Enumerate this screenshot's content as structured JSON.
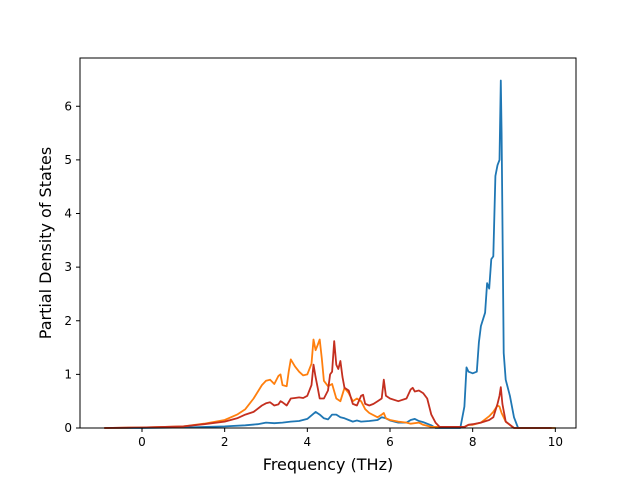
{
  "chart_data": {
    "type": "line",
    "title": "",
    "xlabel": "Frequency (THz)",
    "ylabel": "Partial Density of States",
    "xlim": [
      -1.5,
      10.5
    ],
    "ylim": [
      0,
      6.9
    ],
    "xticks": [
      0,
      2,
      4,
      6,
      8,
      10
    ],
    "yticks": [
      0,
      1,
      2,
      3,
      4,
      5,
      6
    ],
    "xtick_labels": [
      "0",
      "2",
      "4",
      "6",
      "8",
      "10"
    ],
    "ytick_labels": [
      "0",
      "1",
      "2",
      "3",
      "4",
      "5",
      "6"
    ],
    "grid": false,
    "legend": "none",
    "series": [
      {
        "color": "#1f77b4",
        "points": [
          [
            -0.9,
            0
          ],
          [
            0,
            0
          ],
          [
            1,
            0.01
          ],
          [
            2,
            0.03
          ],
          [
            2.5,
            0.05
          ],
          [
            2.8,
            0.07
          ],
          [
            3.0,
            0.1
          ],
          [
            3.2,
            0.09
          ],
          [
            3.4,
            0.1
          ],
          [
            3.6,
            0.12
          ],
          [
            3.8,
            0.13
          ],
          [
            4.0,
            0.17
          ],
          [
            4.2,
            0.3
          ],
          [
            4.3,
            0.25
          ],
          [
            4.4,
            0.18
          ],
          [
            4.5,
            0.16
          ],
          [
            4.6,
            0.25
          ],
          [
            4.7,
            0.25
          ],
          [
            4.8,
            0.2
          ],
          [
            4.9,
            0.18
          ],
          [
            5.0,
            0.15
          ],
          [
            5.1,
            0.12
          ],
          [
            5.2,
            0.14
          ],
          [
            5.3,
            0.12
          ],
          [
            5.5,
            0.13
          ],
          [
            5.7,
            0.15
          ],
          [
            5.8,
            0.2
          ],
          [
            5.9,
            0.18
          ],
          [
            6.0,
            0.14
          ],
          [
            6.2,
            0.1
          ],
          [
            6.4,
            0.1
          ],
          [
            6.5,
            0.15
          ],
          [
            6.6,
            0.17
          ],
          [
            6.7,
            0.13
          ],
          [
            6.8,
            0.11
          ],
          [
            7.0,
            0.05
          ],
          [
            7.1,
            0
          ],
          [
            7.7,
            0
          ],
          [
            7.8,
            0.4
          ],
          [
            7.85,
            1.13
          ],
          [
            7.9,
            1.05
          ],
          [
            8.0,
            1.02
          ],
          [
            8.1,
            1.05
          ],
          [
            8.15,
            1.6
          ],
          [
            8.2,
            1.9
          ],
          [
            8.3,
            2.15
          ],
          [
            8.35,
            2.7
          ],
          [
            8.4,
            2.6
          ],
          [
            8.45,
            3.15
          ],
          [
            8.5,
            3.2
          ],
          [
            8.55,
            4.7
          ],
          [
            8.6,
            4.9
          ],
          [
            8.65,
            5.0
          ],
          [
            8.68,
            6.48
          ],
          [
            8.7,
            5.5
          ],
          [
            8.75,
            1.4
          ],
          [
            8.8,
            0.9
          ],
          [
            8.9,
            0.6
          ],
          [
            9.0,
            0.2
          ],
          [
            9.1,
            0
          ],
          [
            10,
            0
          ]
        ]
      },
      {
        "color": "#ff7f0e",
        "points": [
          [
            -0.9,
            0
          ],
          [
            0,
            0.01
          ],
          [
            1,
            0.03
          ],
          [
            1.5,
            0.08
          ],
          [
            2,
            0.15
          ],
          [
            2.3,
            0.25
          ],
          [
            2.5,
            0.35
          ],
          [
            2.7,
            0.55
          ],
          [
            2.9,
            0.8
          ],
          [
            3.0,
            0.88
          ],
          [
            3.1,
            0.9
          ],
          [
            3.2,
            0.82
          ],
          [
            3.3,
            0.97
          ],
          [
            3.35,
            1.0
          ],
          [
            3.4,
            0.8
          ],
          [
            3.5,
            0.78
          ],
          [
            3.55,
            1.05
          ],
          [
            3.6,
            1.28
          ],
          [
            3.7,
            1.15
          ],
          [
            3.8,
            1.05
          ],
          [
            3.9,
            0.98
          ],
          [
            4.0,
            1.0
          ],
          [
            4.1,
            1.2
          ],
          [
            4.15,
            1.65
          ],
          [
            4.2,
            1.45
          ],
          [
            4.25,
            1.55
          ],
          [
            4.3,
            1.65
          ],
          [
            4.35,
            1.3
          ],
          [
            4.4,
            0.88
          ],
          [
            4.5,
            0.78
          ],
          [
            4.6,
            0.82
          ],
          [
            4.7,
            0.55
          ],
          [
            4.8,
            0.5
          ],
          [
            4.9,
            0.75
          ],
          [
            5.0,
            0.65
          ],
          [
            5.1,
            0.5
          ],
          [
            5.2,
            0.55
          ],
          [
            5.3,
            0.5
          ],
          [
            5.4,
            0.35
          ],
          [
            5.5,
            0.28
          ],
          [
            5.7,
            0.2
          ],
          [
            5.8,
            0.25
          ],
          [
            5.85,
            0.28
          ],
          [
            5.9,
            0.18
          ],
          [
            6.0,
            0.15
          ],
          [
            6.2,
            0.12
          ],
          [
            6.4,
            0.1
          ],
          [
            6.5,
            0.08
          ],
          [
            6.7,
            0.1
          ],
          [
            6.8,
            0.06
          ],
          [
            7.0,
            0.02
          ],
          [
            7.8,
            0.02
          ],
          [
            7.9,
            0.06
          ],
          [
            8.0,
            0.06
          ],
          [
            8.2,
            0.1
          ],
          [
            8.4,
            0.22
          ],
          [
            8.5,
            0.3
          ],
          [
            8.6,
            0.42
          ],
          [
            8.65,
            0.4
          ],
          [
            8.7,
            0.28
          ],
          [
            8.8,
            0.12
          ],
          [
            9.0,
            0
          ],
          [
            10,
            0
          ]
        ]
      },
      {
        "color": "#c42f1f",
        "points": [
          [
            -0.9,
            0
          ],
          [
            0,
            0.01
          ],
          [
            1,
            0.03
          ],
          [
            1.5,
            0.07
          ],
          [
            2,
            0.12
          ],
          [
            2.3,
            0.18
          ],
          [
            2.5,
            0.25
          ],
          [
            2.7,
            0.3
          ],
          [
            2.9,
            0.42
          ],
          [
            3.0,
            0.46
          ],
          [
            3.1,
            0.48
          ],
          [
            3.2,
            0.42
          ],
          [
            3.3,
            0.44
          ],
          [
            3.35,
            0.5
          ],
          [
            3.4,
            0.48
          ],
          [
            3.5,
            0.42
          ],
          [
            3.6,
            0.55
          ],
          [
            3.7,
            0.56
          ],
          [
            3.8,
            0.57
          ],
          [
            3.9,
            0.56
          ],
          [
            4.0,
            0.6
          ],
          [
            4.1,
            0.8
          ],
          [
            4.15,
            1.18
          ],
          [
            4.2,
            0.95
          ],
          [
            4.25,
            0.75
          ],
          [
            4.3,
            0.55
          ],
          [
            4.4,
            0.55
          ],
          [
            4.5,
            0.7
          ],
          [
            4.55,
            1.0
          ],
          [
            4.6,
            1.05
          ],
          [
            4.65,
            1.62
          ],
          [
            4.7,
            1.18
          ],
          [
            4.75,
            1.1
          ],
          [
            4.8,
            1.25
          ],
          [
            4.85,
            0.95
          ],
          [
            4.9,
            0.75
          ],
          [
            5.0,
            0.7
          ],
          [
            5.1,
            0.45
          ],
          [
            5.2,
            0.42
          ],
          [
            5.3,
            0.6
          ],
          [
            5.35,
            0.62
          ],
          [
            5.4,
            0.45
          ],
          [
            5.5,
            0.42
          ],
          [
            5.6,
            0.45
          ],
          [
            5.7,
            0.5
          ],
          [
            5.8,
            0.55
          ],
          [
            5.85,
            0.9
          ],
          [
            5.9,
            0.6
          ],
          [
            6.0,
            0.55
          ],
          [
            6.2,
            0.5
          ],
          [
            6.4,
            0.55
          ],
          [
            6.5,
            0.72
          ],
          [
            6.55,
            0.75
          ],
          [
            6.6,
            0.68
          ],
          [
            6.7,
            0.7
          ],
          [
            6.8,
            0.65
          ],
          [
            6.9,
            0.55
          ],
          [
            7.0,
            0.25
          ],
          [
            7.1,
            0.1
          ],
          [
            7.2,
            0.02
          ],
          [
            7.8,
            0.02
          ],
          [
            7.9,
            0.06
          ],
          [
            8.0,
            0.07
          ],
          [
            8.2,
            0.1
          ],
          [
            8.4,
            0.15
          ],
          [
            8.5,
            0.2
          ],
          [
            8.6,
            0.45
          ],
          [
            8.65,
            0.6
          ],
          [
            8.68,
            0.76
          ],
          [
            8.72,
            0.45
          ],
          [
            8.8,
            0.12
          ],
          [
            9.0,
            0
          ],
          [
            9.9,
            0
          ]
        ]
      }
    ]
  }
}
